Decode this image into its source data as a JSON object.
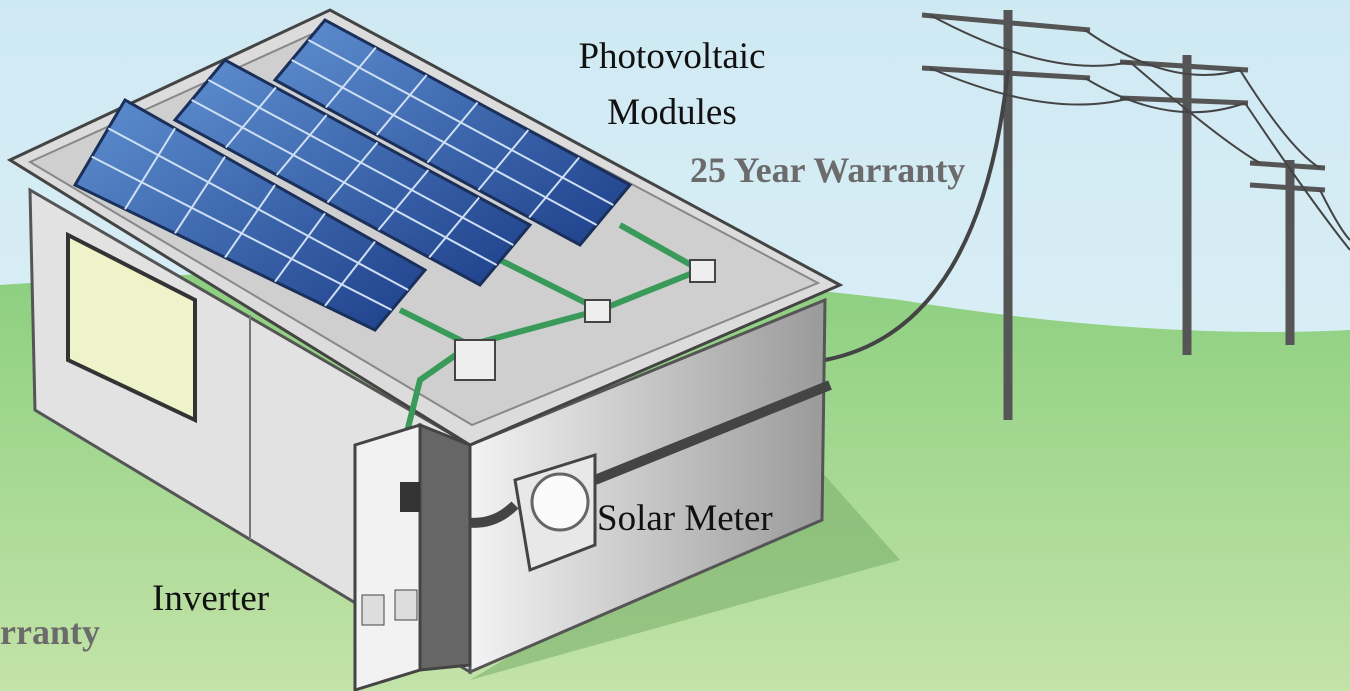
{
  "labels": {
    "modules_line1": "Photovoltaic",
    "modules_line2": "Modules",
    "modules_warranty": "25 Year Warranty",
    "meter": "Solar Meter",
    "inverter": "Inverter",
    "inverter_warranty": "rranty"
  }
}
